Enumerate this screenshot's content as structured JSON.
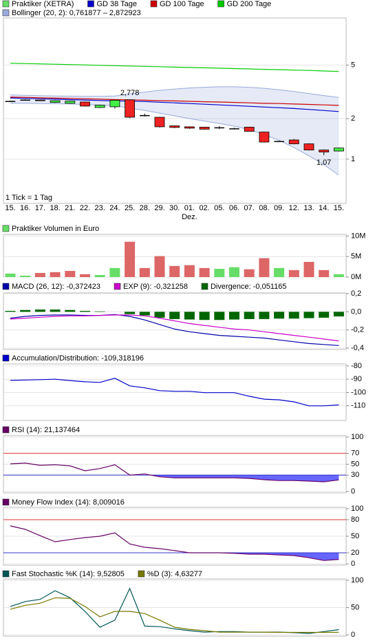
{
  "chart_data": [
    {
      "type": "candlestick",
      "name": "Praktiker (XETRA)",
      "color": "#66dd66",
      "up_color": "#44ee44",
      "down_color": "#ee2222",
      "categories": [
        "15.",
        "16.",
        "17.",
        "18.",
        "21.",
        "22.",
        "23.",
        "24.",
        "25.",
        "28.",
        "29.",
        "30.",
        "01.",
        "02.",
        "05.",
        "06.",
        "07.",
        "08.",
        "09.",
        "12.",
        "13.",
        "14.",
        "15."
      ],
      "month_labels": [
        {
          "category": "01.",
          "label": "Dez."
        }
      ],
      "open": [
        2.7,
        2.76,
        2.75,
        2.64,
        2.6,
        2.66,
        2.42,
        2.45,
        2.76,
        2.12,
        2.05,
        1.77,
        1.74,
        1.73,
        1.72,
        1.69,
        1.73,
        1.59,
        1.36,
        1.39,
        1.3,
        1.17,
        1.15
      ],
      "high": [
        2.72,
        2.78,
        2.76,
        2.74,
        2.72,
        2.68,
        2.54,
        2.76,
        2.778,
        2.18,
        2.06,
        1.78,
        1.75,
        1.74,
        1.76,
        1.71,
        1.74,
        1.6,
        1.37,
        1.41,
        1.31,
        1.18,
        1.22
      ],
      "low": [
        2.68,
        2.74,
        2.72,
        2.62,
        2.58,
        2.46,
        2.4,
        2.38,
        2.02,
        2.08,
        1.72,
        1.7,
        1.68,
        1.66,
        1.68,
        1.67,
        1.6,
        1.33,
        1.35,
        1.29,
        1.16,
        1.07,
        1.14
      ],
      "close": [
        2.7,
        2.76,
        2.72,
        2.72,
        2.7,
        2.48,
        2.52,
        2.74,
        2.05,
        2.12,
        1.74,
        1.72,
        1.7,
        1.67,
        1.72,
        1.69,
        1.61,
        1.34,
        1.36,
        1.3,
        1.17,
        1.13,
        1.21
      ],
      "series": [
        {
          "name": "GD 38 Tage",
          "color": "#0000cc",
          "values": [
            2.85,
            2.83,
            2.81,
            2.79,
            2.77,
            2.75,
            2.73,
            2.71,
            2.7,
            2.68,
            2.65,
            2.62,
            2.59,
            2.56,
            2.53,
            2.5,
            2.47,
            2.44,
            2.41,
            2.38,
            2.34,
            2.3,
            2.26
          ]
        },
        {
          "name": "GD 100 Tage",
          "color": "#cc0000",
          "values": [
            2.89,
            2.88,
            2.86,
            2.84,
            2.83,
            2.81,
            2.79,
            2.77,
            2.76,
            2.74,
            2.72,
            2.71,
            2.69,
            2.67,
            2.66,
            2.64,
            2.62,
            2.6,
            2.59,
            2.57,
            2.55,
            2.53,
            2.51
          ]
        },
        {
          "name": "GD 200 Tage",
          "color": "#00cc00",
          "values": [
            5.16,
            5.13,
            5.1,
            5.07,
            5.04,
            5.01,
            4.98,
            4.95,
            4.92,
            4.89,
            4.86,
            4.83,
            4.8,
            4.77,
            4.74,
            4.71,
            4.68,
            4.65,
            4.62,
            4.59,
            4.56,
            4.52,
            4.48
          ]
        }
      ],
      "bollinger": {
        "name": "Bollinger (20, 2): 0,761877 – 2,872923",
        "color": "#99aadd",
        "upper": [
          3.0,
          2.98,
          2.96,
          2.95,
          2.94,
          2.93,
          2.93,
          2.95,
          3.05,
          3.15,
          3.25,
          3.32,
          3.38,
          3.42,
          3.45,
          3.45,
          3.42,
          3.36,
          3.28,
          3.18,
          3.07,
          2.97,
          2.873
        ],
        "lower": [
          2.6,
          2.6,
          2.59,
          2.58,
          2.57,
          2.55,
          2.52,
          2.5,
          2.4,
          2.3,
          2.2,
          2.1,
          2.0,
          1.92,
          1.84,
          1.76,
          1.66,
          1.52,
          1.38,
          1.22,
          1.06,
          0.91,
          0.762
        ]
      },
      "ylim": [
        0.47,
        11.2
      ],
      "yticks": [
        1,
        2,
        5
      ],
      "log_scale": true,
      "annotations": [
        {
          "category": "25.",
          "value": 2.778,
          "label": "2,778",
          "position": "above"
        },
        {
          "category": "14.",
          "value": 1.07,
          "label": "1,07",
          "position": "below"
        }
      ],
      "note": "1 Tick = 1 Tag"
    },
    {
      "type": "bar",
      "series": [
        {
          "name": "Praktiker Volumen in Euro",
          "color": "#66dd66",
          "values": [
            0.85,
            0.35,
            1.0,
            1.2,
            1.5,
            0.7,
            0.5,
            2.2,
            8.6,
            2.2,
            5.1,
            2.7,
            2.9,
            2.2,
            2.0,
            2.4,
            1.9,
            4.6,
            2.2,
            1.7,
            3.7,
            1.7,
            0.7
          ],
          "bar_colors": [
            "#66dd66",
            "#66dd66",
            "#dd6666",
            "#dd6666",
            "#dd6666",
            "#dd6666",
            "#66dd66",
            "#66dd66",
            "#dd6666",
            "#dd6666",
            "#dd6666",
            "#dd6666",
            "#dd6666",
            "#dd6666",
            "#66dd66",
            "#66dd66",
            "#dd6666",
            "#dd6666",
            "#66dd66",
            "#dd6666",
            "#dd6666",
            "#dd6666",
            "#66dd66"
          ]
        }
      ],
      "ylim": [
        0,
        10.4
      ],
      "yticks": [
        {
          "value": 0,
          "label": "0M"
        },
        {
          "value": 5,
          "label": "5M"
        },
        {
          "value": 10,
          "label": "10M"
        }
      ]
    },
    {
      "type": "combo",
      "series": [
        {
          "name": "MACD (26, 12): -0,372423",
          "color": "#0000aa",
          "type": "line",
          "values": [
            -0.07,
            -0.05,
            -0.04,
            -0.035,
            -0.035,
            -0.04,
            -0.04,
            -0.03,
            -0.05,
            -0.09,
            -0.14,
            -0.19,
            -0.22,
            -0.24,
            -0.26,
            -0.27,
            -0.28,
            -0.29,
            -0.31,
            -0.33,
            -0.35,
            -0.36,
            -0.372
          ]
        },
        {
          "name": "EXP (9): -0,321258",
          "color": "#cc00cc",
          "type": "line",
          "values": [
            -0.08,
            -0.07,
            -0.06,
            -0.05,
            -0.045,
            -0.045,
            -0.04,
            -0.035,
            -0.035,
            -0.045,
            -0.07,
            -0.1,
            -0.13,
            -0.15,
            -0.17,
            -0.19,
            -0.2,
            -0.22,
            -0.24,
            -0.26,
            -0.28,
            -0.3,
            -0.321
          ]
        },
        {
          "name": "Divergence: -0,051165",
          "color": "#006600",
          "type": "bar",
          "values": [
            0.01,
            0.02,
            0.025,
            0.025,
            0.02,
            0.01,
            0.005,
            0,
            -0.025,
            -0.04,
            -0.065,
            -0.08,
            -0.085,
            -0.09,
            -0.09,
            -0.085,
            -0.08,
            -0.08,
            -0.075,
            -0.075,
            -0.07,
            -0.065,
            -0.051
          ]
        }
      ],
      "ylim": [
        -0.415,
        0.208
      ],
      "yticks": [
        {
          "value": -0.4,
          "label": "-0,4"
        },
        {
          "value": -0.2,
          "label": "-0,2"
        },
        {
          "value": 0,
          "label": "0,0"
        },
        {
          "value": 0.2,
          "label": "0,2"
        }
      ]
    },
    {
      "type": "line",
      "series": [
        {
          "name": "Accumulation/Distribution: -109,318196",
          "color": "#0000cc",
          "values": [
            -90.9,
            -90.6,
            -90.3,
            -90.0,
            -91.0,
            -91.9,
            -92.4,
            -89.3,
            -95.0,
            -96.5,
            -98.6,
            -99.1,
            -99.1,
            -100.1,
            -100.1,
            -100.1,
            -102.8,
            -105.0,
            -105.5,
            -107.0,
            -110.0,
            -110.0,
            -109.318
          ]
        }
      ],
      "ylim": [
        -121,
        -78.5
      ],
      "yticks": [
        -110,
        -100,
        -90,
        -80
      ]
    },
    {
      "type": "line",
      "series": [
        {
          "name": "RSI (14): 21,137464",
          "color": "#660066",
          "values": [
            50.6,
            52,
            48,
            49,
            47,
            38,
            42,
            49,
            30,
            32,
            27,
            25,
            25,
            25,
            25,
            25,
            24,
            21.5,
            20,
            20,
            19,
            17.7,
            21.14
          ]
        }
      ],
      "reference_lines": [
        {
          "value": 70,
          "color": "#dd3333",
          "fill": false
        },
        {
          "value": 30,
          "color": "#3333cc",
          "fill": true,
          "fill_color": "#6666ff"
        }
      ],
      "ylim": [
        -2.5,
        102.5
      ],
      "yticks": [
        0,
        30,
        50,
        70,
        100
      ]
    },
    {
      "type": "line",
      "series": [
        {
          "name": "Money Flow Index (14): 8,009016",
          "color": "#660066",
          "values": [
            68.8,
            62.5,
            51,
            40,
            44,
            47.5,
            50,
            56,
            36,
            30,
            27.5,
            24,
            20,
            20,
            20,
            19,
            17.5,
            17.5,
            16,
            15,
            11,
            6,
            8.0
          ]
        }
      ],
      "reference_lines": [
        {
          "value": 80,
          "color": "#dd3333",
          "fill": false
        },
        {
          "value": 20,
          "color": "#3333cc",
          "fill": true,
          "fill_color": "#6666ff"
        }
      ],
      "ylim": [
        -2.5,
        102.5
      ],
      "yticks": [
        0,
        20,
        50,
        80,
        100
      ]
    },
    {
      "type": "line",
      "series": [
        {
          "name": "Fast Stochastic %K (14): 9,52805",
          "color": "#005555",
          "values": [
            52,
            61,
            65,
            81,
            68,
            43,
            14,
            27,
            85,
            16,
            15,
            11,
            7.6,
            5,
            6,
            6,
            5,
            5,
            5,
            4,
            2.5,
            6,
            9.5
          ]
        },
        {
          "name": "%D (3): 4,63277",
          "color": "#777700",
          "values": [
            47,
            54,
            58,
            68,
            67,
            52,
            33,
            43,
            43,
            39,
            27,
            14,
            10,
            7.6,
            5,
            5,
            5,
            5,
            4.5,
            4.5,
            4.5,
            4.5,
            4.6
          ]
        }
      ],
      "ylim": [
        -2.5,
        102.5
      ],
      "yticks": [
        0,
        50,
        100
      ]
    }
  ]
}
